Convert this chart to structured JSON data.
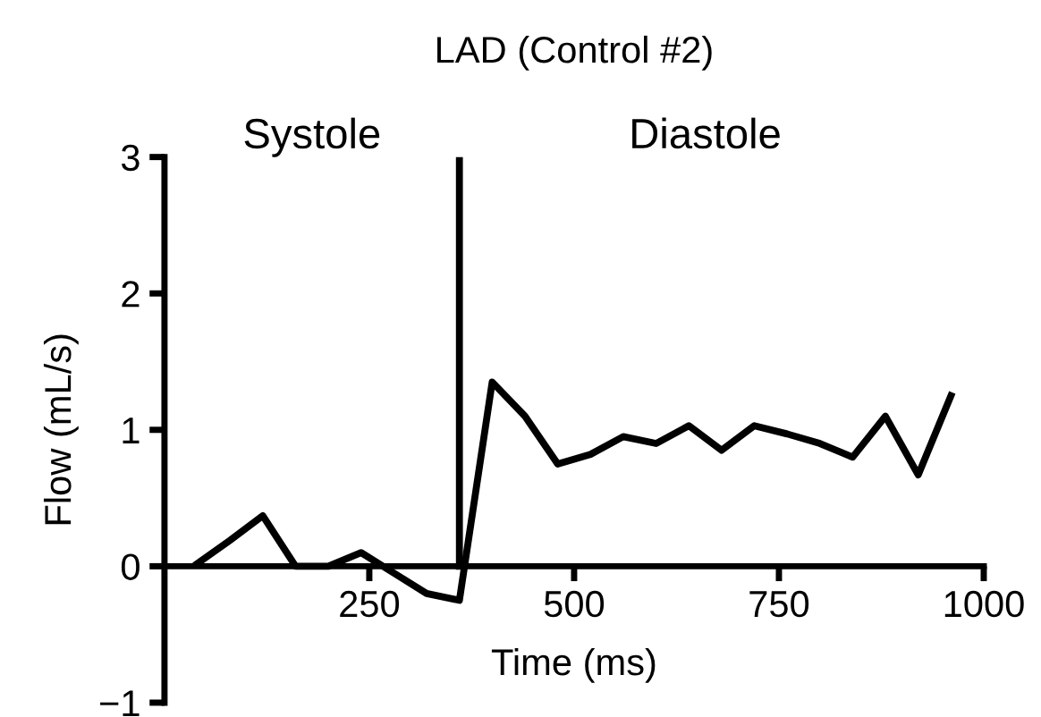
{
  "chart_data": {
    "type": "line",
    "title": "LAD (Control #2)",
    "xlabel": "Time (ms)",
    "ylabel": "Flow (mL/s)",
    "x": [
      40,
      80,
      120,
      160,
      200,
      240,
      280,
      320,
      360,
      400,
      440,
      480,
      520,
      560,
      600,
      640,
      680,
      720,
      760,
      800,
      840,
      880,
      920,
      960
    ],
    "series": [
      {
        "color": "#000000",
        "values": [
          0.02,
          0.19,
          0.37,
          0,
          0,
          0.1,
          -0.05,
          -0.2,
          -0.25,
          1.35,
          1.1,
          0.75,
          0.82,
          0.95,
          0.9,
          1.03,
          0.85,
          1.03,
          0.97,
          0.9,
          0.8,
          1.1,
          0.67,
          1.25
        ]
      }
    ],
    "xlim": [
      0,
      1000
    ],
    "ylim": [
      -1,
      3
    ],
    "xticks": [
      250,
      500,
      750,
      1000
    ],
    "yticks": [
      -1,
      0,
      1,
      2,
      3
    ],
    "ref_lines": [
      {
        "axis": "x",
        "value": 360,
        "color": "#000000"
      }
    ],
    "annotations": [
      "Systole",
      "Diastole"
    ],
    "grid": false,
    "legend": false
  }
}
